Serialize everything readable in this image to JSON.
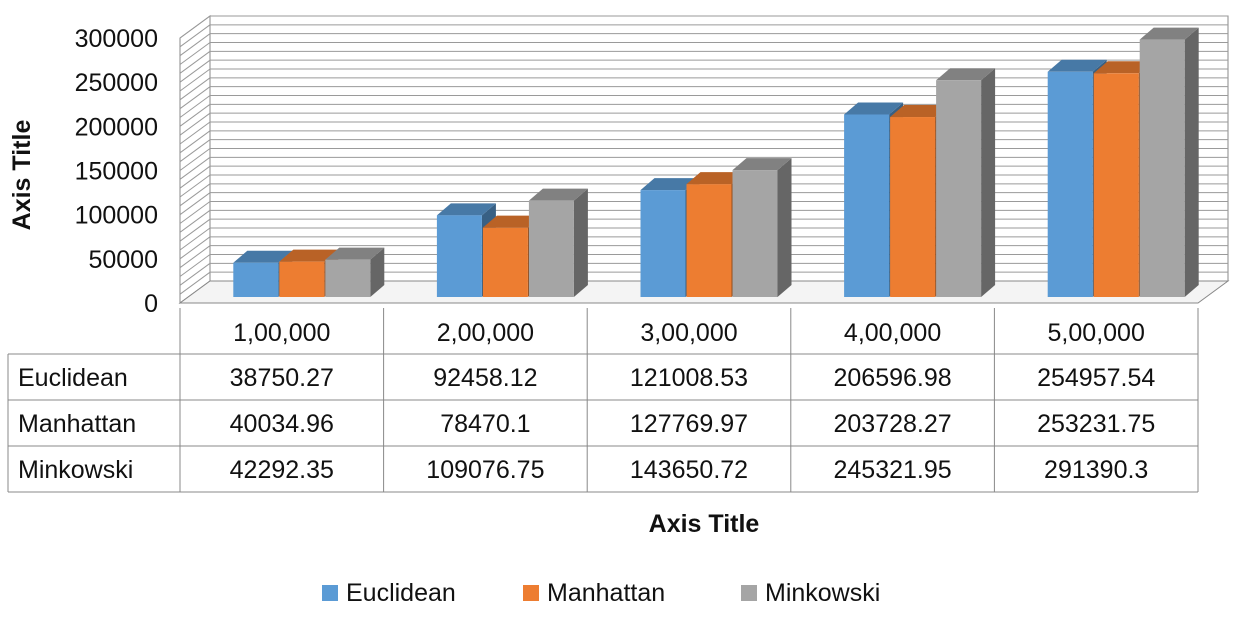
{
  "chart_data": {
    "type": "bar",
    "title": "",
    "xlabel": "Axis Title",
    "ylabel": "Axis Title",
    "ylim": [
      0,
      300000
    ],
    "y_ticks": [
      "0",
      "50000",
      "100000",
      "150000",
      "200000",
      "250000",
      "300000"
    ],
    "categories": [
      "1,00,000",
      "2,00,000",
      "3,00,000",
      "4,00,000",
      "5,00,000"
    ],
    "series": [
      {
        "name": "Euclidean",
        "values": [
          38750.27,
          92458.12,
          121008.53,
          206596.98,
          254957.54
        ],
        "display": [
          "38750.27",
          "92458.12",
          "121008.53",
          "206596.98",
          "254957.54"
        ],
        "color": "#5B9BD5"
      },
      {
        "name": "Manhattan",
        "values": [
          40034.96,
          78470.1,
          127769.97,
          203728.27,
          253231.75
        ],
        "display": [
          "40034.96",
          "78470.1",
          "127769.97",
          "203728.27",
          "253231.75"
        ],
        "color": "#ED7D31"
      },
      {
        "name": "Minkowski",
        "values": [
          42292.35,
          109076.75,
          143650.72,
          245321.95,
          291390.3
        ],
        "display": [
          "42292.35",
          "109076.75",
          "143650.72",
          "245321.95",
          "291390.3"
        ],
        "color": "#A5A5A5"
      }
    ],
    "grid": true,
    "data_table": true,
    "legend_position": "bottom",
    "style": "3d-clustered-column"
  }
}
